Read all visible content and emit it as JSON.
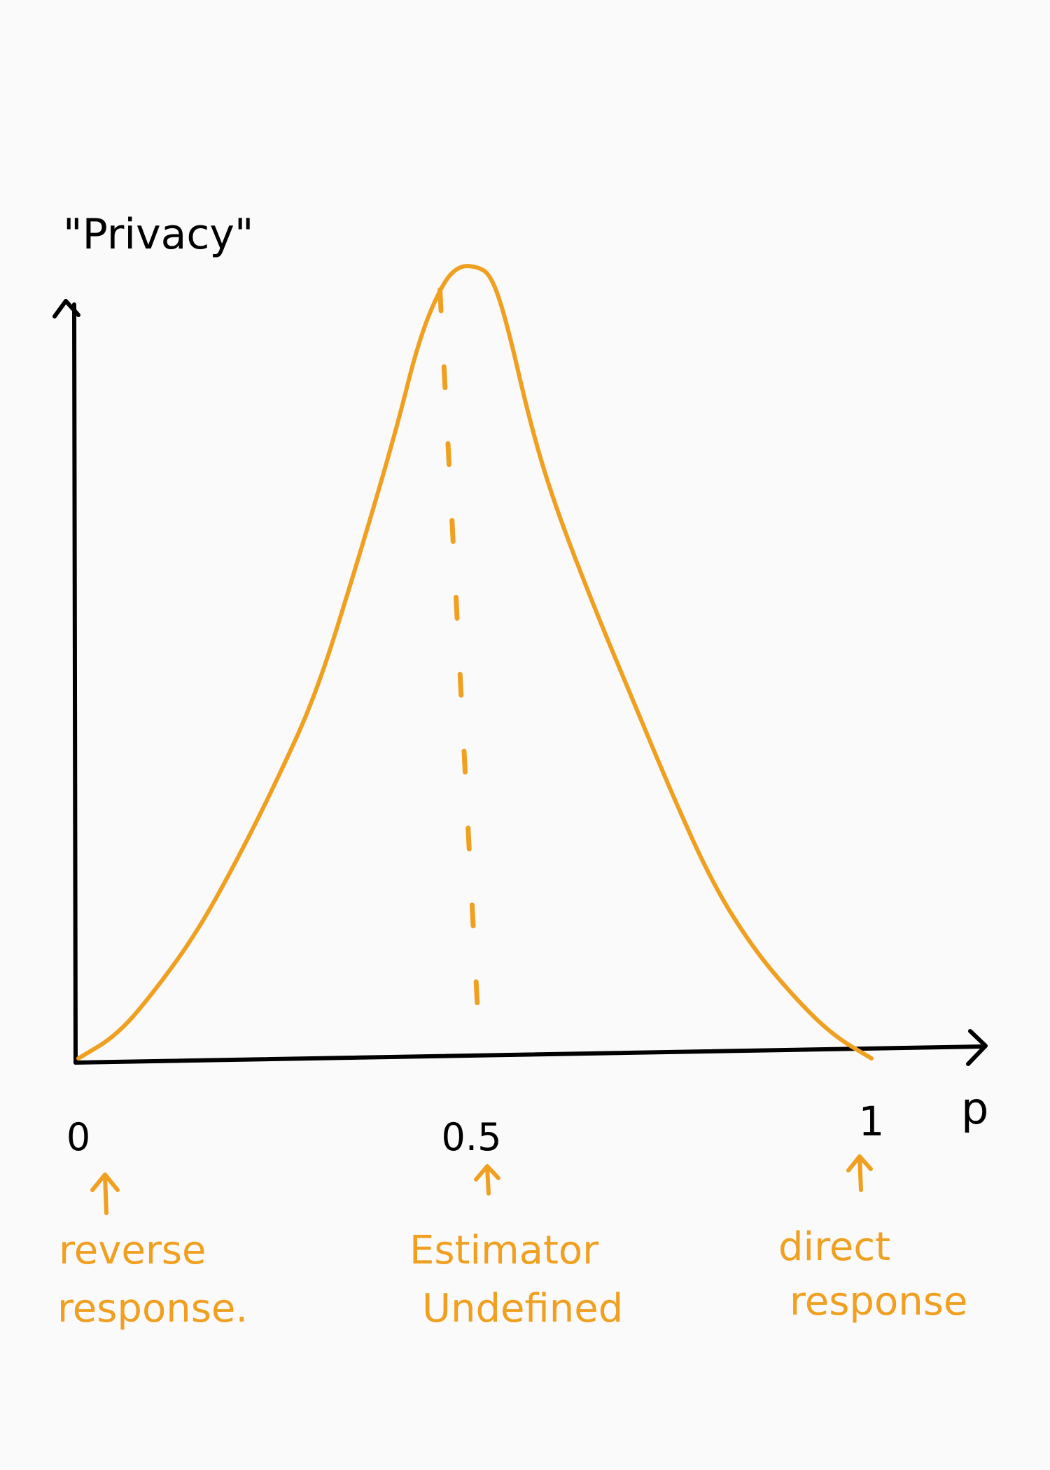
{
  "colors": {
    "background": "#fafafa",
    "axis": "#000000",
    "curve": "#f0a020",
    "annotation": "#f0a020"
  },
  "chart_data": {
    "type": "line",
    "title": "",
    "ylabel": "\"Privacy\"",
    "xlabel": "p",
    "xlim": [
      0,
      1.1
    ],
    "ticks": [
      {
        "value": 0,
        "label": "0"
      },
      {
        "value": 0.5,
        "label": "0.5"
      },
      {
        "value": 1,
        "label": "1"
      }
    ],
    "series": [
      {
        "x": [
          0.0,
          0.05,
          0.1,
          0.15,
          0.2,
          0.25,
          0.3,
          0.35,
          0.4,
          0.43,
          0.46,
          0.48,
          0.5,
          0.52,
          0.54,
          0.57,
          0.6,
          0.65,
          0.7,
          0.75,
          0.8,
          0.85,
          0.9,
          0.95,
          1.0
        ],
        "y": [
          0.0,
          0.03,
          0.09,
          0.16,
          0.25,
          0.35,
          0.46,
          0.62,
          0.79,
          0.91,
          0.98,
          1.0,
          1.0,
          0.99,
          0.93,
          0.8,
          0.7,
          0.57,
          0.45,
          0.33,
          0.22,
          0.14,
          0.08,
          0.03,
          0.0
        ]
      }
    ],
    "reference_line": {
      "x": 0.5,
      "style": "dashed"
    },
    "annotations": [
      {
        "at": 0,
        "lines": [
          "reverse",
          "response."
        ]
      },
      {
        "at": 0.5,
        "lines": [
          "Estimator",
          "Undefined"
        ]
      },
      {
        "at": 1,
        "lines": [
          "direct",
          "response"
        ]
      }
    ]
  }
}
